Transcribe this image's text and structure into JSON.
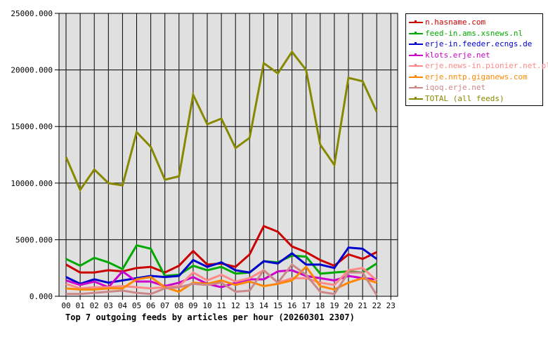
{
  "chart_data": {
    "type": "line",
    "title": "Top 7 outgoing feeds by articles per hour (20260301 2307)",
    "xlabel": "",
    "ylabel": "",
    "ylim": [
      0,
      25000
    ],
    "yticks": [
      "0.000",
      "5000.000",
      "10000.000",
      "15000.000",
      "20000.000",
      "25000.000"
    ],
    "grid": true,
    "legend_position": "right",
    "categories": [
      "00",
      "01",
      "02",
      "03",
      "04",
      "05",
      "06",
      "07",
      "08",
      "09",
      "10",
      "11",
      "12",
      "13",
      "14",
      "15",
      "16",
      "17",
      "18",
      "19",
      "20",
      "21",
      "22",
      "23"
    ],
    "series": [
      {
        "name": "n.hasname.com",
        "color": "#cc0000",
        "values": [
          2800,
          2100,
          2100,
          2300,
          2200,
          2500,
          2600,
          2100,
          2700,
          4000,
          2800,
          2900,
          2600,
          3700,
          6200,
          5700,
          4400,
          3900,
          3200,
          2700,
          3700,
          3300,
          3900
        ]
      },
      {
        "name": "feed-in.ams.xsnews.nl",
        "color": "#00aa00",
        "values": [
          3300,
          2700,
          3400,
          3000,
          2400,
          4500,
          4200,
          1800,
          1900,
          2700,
          2300,
          2600,
          2000,
          2100,
          3100,
          3000,
          3600,
          3500,
          2000,
          2100,
          2200,
          2100,
          2900
        ]
      },
      {
        "name": "erje-in.feeder.ecngs.de",
        "color": "#0000cc",
        "values": [
          1700,
          1100,
          1500,
          1200,
          1400,
          1600,
          1800,
          1700,
          1800,
          3200,
          2600,
          3000,
          2300,
          2100,
          3100,
          2900,
          3800,
          2800,
          2800,
          2500,
          4300,
          4200,
          3300
        ]
      },
      {
        "name": "klots.erje.net",
        "color": "#cc00cc",
        "values": [
          1400,
          1000,
          1300,
          800,
          2200,
          1300,
          1300,
          900,
          1200,
          1700,
          1100,
          800,
          1200,
          1500,
          1500,
          2200,
          2300,
          1800,
          1600,
          1400,
          1800,
          1600,
          1500
        ]
      },
      {
        "name": "erje.news-in.pionier.net.pl",
        "color": "#ff8888",
        "values": [
          1100,
          700,
          800,
          800,
          900,
          800,
          700,
          800,
          900,
          2100,
          1400,
          1900,
          1300,
          1600,
          2300,
          1200,
          1600,
          1600,
          1200,
          1000,
          2300,
          2500,
          1400
        ]
      },
      {
        "name": "erje.nntp.giganews.com",
        "color": "#ff8800",
        "values": [
          700,
          600,
          600,
          700,
          700,
          1500,
          1700,
          800,
          400,
          1200,
          1100,
          1400,
          1000,
          1300,
          900,
          1100,
          1400,
          2600,
          900,
          600,
          1200,
          1600,
          1200
        ]
      },
      {
        "name": "iqoq.erje.net",
        "color": "#cc8888",
        "values": [
          200,
          200,
          300,
          400,
          500,
          300,
          200,
          700,
          800,
          1100,
          1000,
          1200,
          400,
          500,
          2300,
          1200,
          2800,
          1900,
          400,
          200,
          2100,
          2100,
          100
        ]
      },
      {
        "name": "TOTAL (all feeds)",
        "color": "#888800",
        "values": [
          12300,
          9400,
          11200,
          10000,
          9800,
          14500,
          13200,
          10300,
          10600,
          17800,
          15200,
          15700,
          13100,
          14000,
          20600,
          19700,
          21600,
          20000,
          13400,
          11600,
          19300,
          19000,
          16300
        ]
      }
    ]
  },
  "legend": {
    "items": [
      {
        "label": "n.hasname.com",
        "color": "#cc0000"
      },
      {
        "label": "feed-in.ams.xsnews.nl",
        "color": "#00aa00"
      },
      {
        "label": "erje-in.feeder.ecngs.de",
        "color": "#0000cc"
      },
      {
        "label": "klots.erje.net",
        "color": "#cc00cc"
      },
      {
        "label": "erje.news-in.pionier.net.pl",
        "color": "#ff8888"
      },
      {
        "label": "erje.nntp.giganews.com",
        "color": "#ff8800"
      },
      {
        "label": "iqoq.erje.net",
        "color": "#cc8888"
      },
      {
        "label": "TOTAL (all feeds)",
        "color": "#888800"
      }
    ]
  }
}
